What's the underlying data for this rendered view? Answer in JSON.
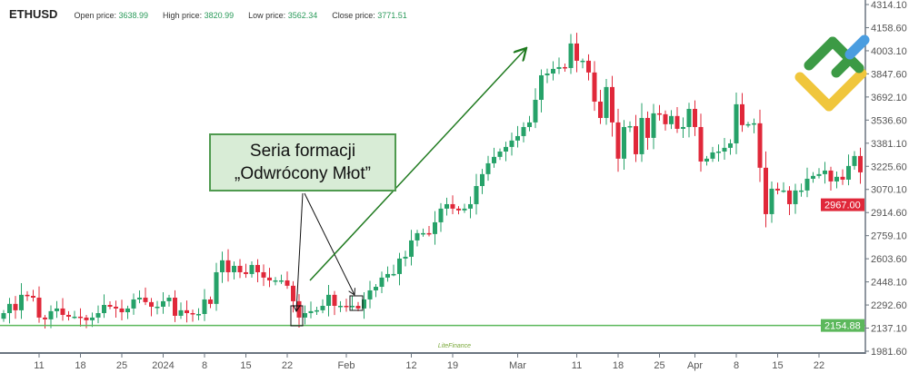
{
  "header": {
    "symbol": "ETHUSD",
    "open_label": "Open price:",
    "open": "3638.99",
    "high_label": "High price:",
    "high": "3820.99",
    "low_label": "Low price:",
    "low": "3562.34",
    "close_label": "Close price:",
    "close": "3771.51"
  },
  "annotation": {
    "line1": "Seria formacji",
    "line2": "„Odwrócony Młot”"
  },
  "colors": {
    "up": "#26a269",
    "down": "#e0283a",
    "support": "#5cb85c",
    "arrow": "#1f7a1f"
  },
  "watermark": "LiteFinance",
  "chart_data": {
    "type": "candlestick",
    "title": "ETHUSD",
    "ylim": [
      1981.6,
      4314.1
    ],
    "y_ticks": [
      "4314.10",
      "4158.60",
      "4003.10",
      "3847.60",
      "3692.10",
      "3536.60",
      "3381.10",
      "3225.60",
      "3070.10",
      "2914.60",
      "2759.10",
      "2603.60",
      "2448.10",
      "2292.60",
      "2137.10",
      "1981.60"
    ],
    "x_tick_labels": [
      {
        "label": "11",
        "day": 6
      },
      {
        "label": "18",
        "day": 13
      },
      {
        "label": "25",
        "day": 20
      },
      {
        "label": "2024",
        "day": 27
      },
      {
        "label": "8",
        "day": 34
      },
      {
        "label": "15",
        "day": 41
      },
      {
        "label": "22",
        "day": 48
      },
      {
        "label": "Feb",
        "day": 58
      },
      {
        "label": "12",
        "day": 69
      },
      {
        "label": "19",
        "day": 76
      },
      {
        "label": "Mar",
        "day": 87
      },
      {
        "label": "11",
        "day": 97
      },
      {
        "label": "18",
        "day": 104
      },
      {
        "label": "25",
        "day": 111
      },
      {
        "label": "Apr",
        "day": 117
      },
      {
        "label": "8",
        "day": 124
      },
      {
        "label": "15",
        "day": 131
      },
      {
        "label": "22",
        "day": 138
      }
    ],
    "closes": [
      2238,
      2300,
      2257,
      2361,
      2354,
      2342,
      2208,
      2196,
      2251,
      2269,
      2226,
      2214,
      2214,
      2208,
      2190,
      2208,
      2238,
      2293,
      2281,
      2269,
      2244,
      2269,
      2330,
      2342,
      2312,
      2281,
      2281,
      2318,
      2342,
      2220,
      2257,
      2238,
      2232,
      2232,
      2330,
      2300,
      2513,
      2593,
      2513,
      2556,
      2513,
      2501,
      2562,
      2513,
      2477,
      2458,
      2458,
      2458,
      2422,
      2318,
      2208,
      2238,
      2251,
      2257,
      2287,
      2361,
      2287,
      2287,
      2281,
      2287,
      2269,
      2330,
      2391,
      2415,
      2477,
      2501,
      2501,
      2605,
      2617,
      2727,
      2776,
      2776,
      2770,
      2849,
      2941,
      2971,
      2941,
      2929,
      2941,
      2971,
      3093,
      3173,
      3246,
      3289,
      3325,
      3356,
      3399,
      3429,
      3490,
      3521,
      3673,
      3838,
      3850,
      3881,
      3893,
      3887,
      4052,
      3936,
      3936,
      3857,
      3661,
      3551,
      3759,
      3521,
      3277,
      3490,
      3496,
      3307,
      3551,
      3417,
      3582,
      3576,
      3509,
      3564,
      3478,
      3490,
      3612,
      3490,
      3258,
      3277,
      3319,
      3325,
      3350,
      3380,
      3643,
      3503,
      3509,
      3515,
      3216,
      2904,
      3075,
      3063,
      3063,
      2971,
      3063,
      3063,
      3142,
      3161,
      3173,
      3197,
      3124,
      3155,
      3136,
      3228,
      3295,
      3185
    ],
    "price_lines": [
      {
        "value": "2967.00",
        "color": "#e0283a"
      },
      {
        "value": "2154.88",
        "color": "#5cb85c"
      }
    ],
    "highlighted_days": [
      50,
      59
    ]
  }
}
